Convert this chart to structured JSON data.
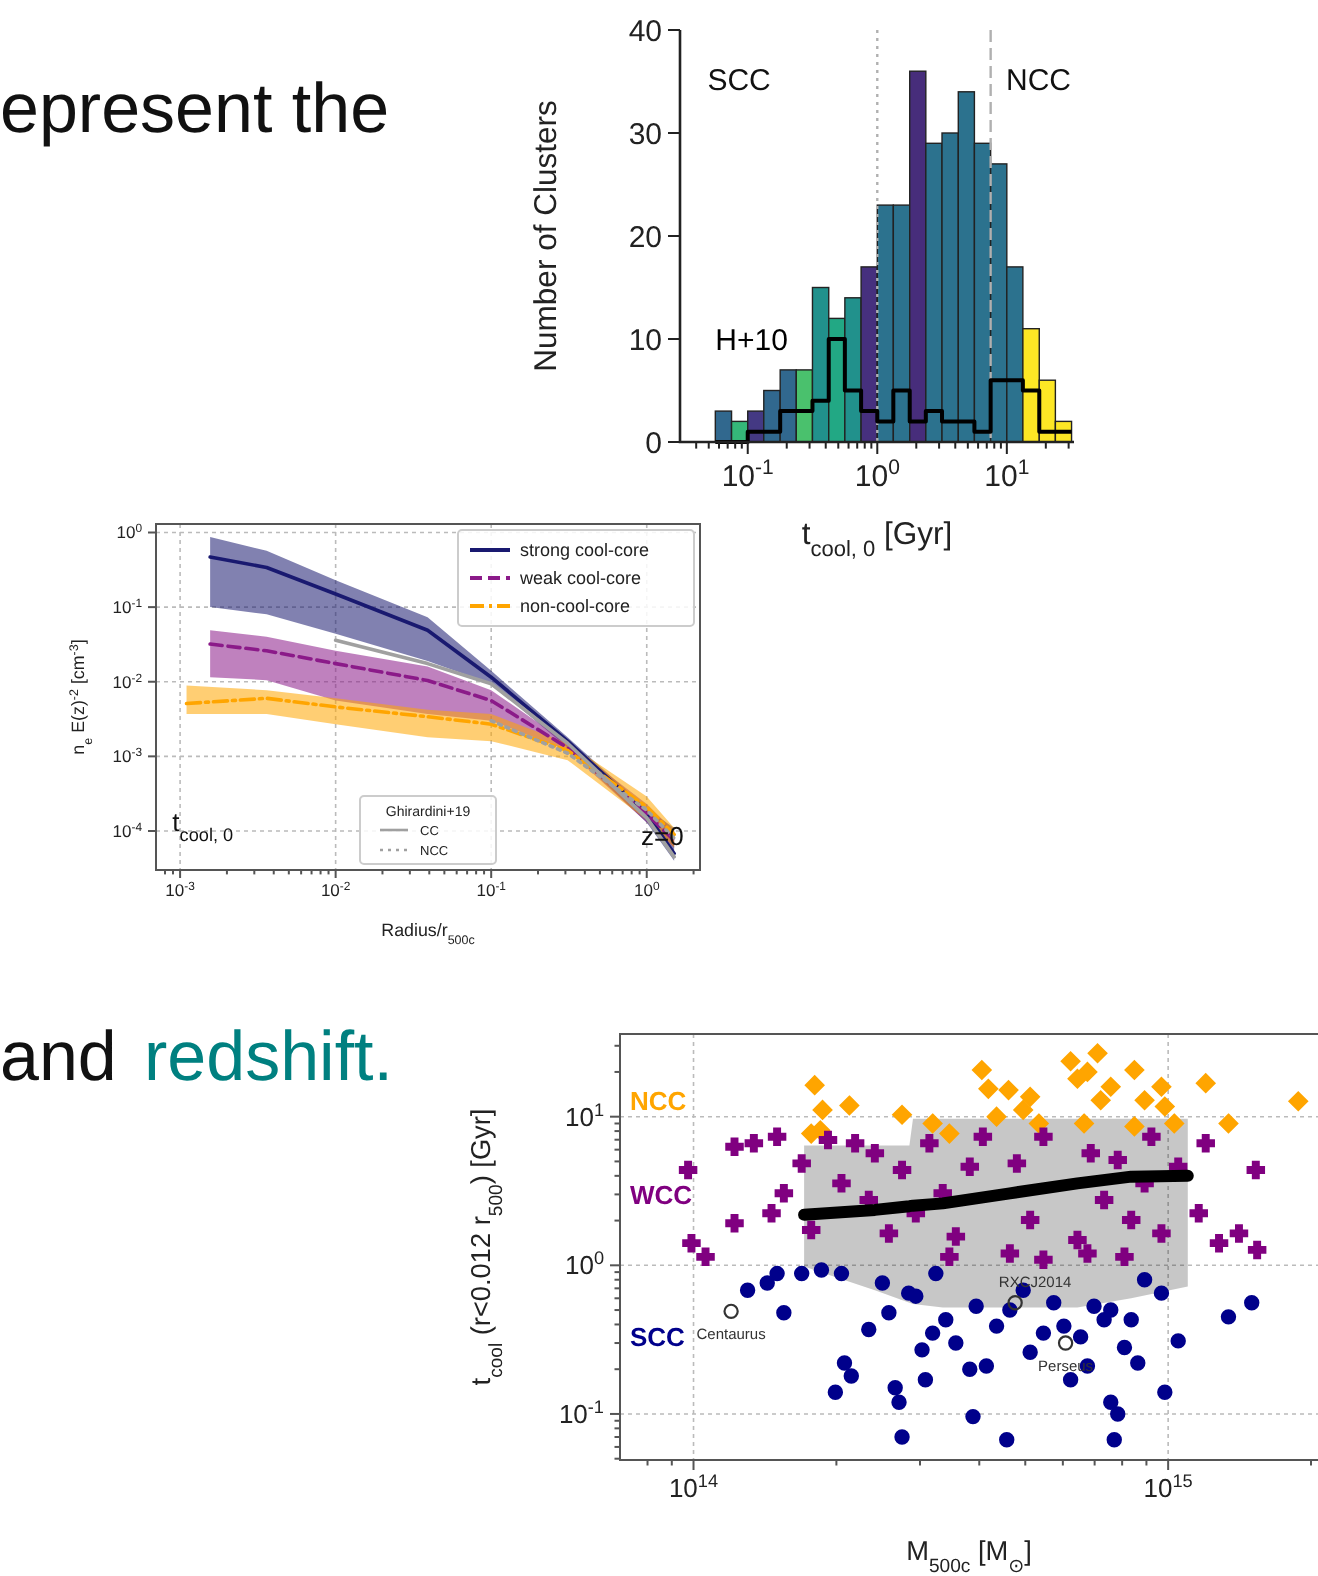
{
  "chart_data": [
    {
      "type": "histogram",
      "xlabel": "t$_{cool, 0}$ [Gyr]",
      "ylabel": "Number of Clusters",
      "log": "x",
      "grid": false,
      "legend": false,
      "bins": [
        0.0562,
        0.075,
        0.1,
        0.133,
        0.178,
        0.237,
        0.316,
        0.422,
        0.562,
        0.75,
        1,
        1.33,
        1.78,
        2.37,
        3.16,
        4.22,
        5.62,
        7.5,
        10,
        13.3,
        17.8,
        23.7,
        31.6
      ],
      "xlim": [
        0.03,
        33
      ],
      "ylim": [
        0,
        40
      ],
      "xticks": [
        {
          "value": 0.04,
          "label": null
        },
        {
          "value": 0.05,
          "label": null
        },
        {
          "value": 0.06,
          "label": null
        },
        {
          "value": 0.07,
          "label": null
        },
        {
          "value": 0.08,
          "label": null
        },
        {
          "value": 0.09,
          "label": null
        },
        {
          "value": 0.1,
          "label": "10$^{-1}$"
        },
        {
          "value": 0.2,
          "label": null
        },
        {
          "value": 0.3,
          "label": null
        },
        {
          "value": 0.4,
          "label": null
        },
        {
          "value": 0.5,
          "label": null
        },
        {
          "value": 0.6,
          "label": null
        },
        {
          "value": 0.7,
          "label": null
        },
        {
          "value": 0.8,
          "label": null
        },
        {
          "value": 0.9,
          "label": null
        },
        {
          "value": 1,
          "label": "10$^{0}$"
        },
        {
          "value": 2,
          "label": null
        },
        {
          "value": 3,
          "label": null
        },
        {
          "value": 4,
          "label": null
        },
        {
          "value": 5,
          "label": null
        },
        {
          "value": 6,
          "label": null
        },
        {
          "value": 7,
          "label": null
        },
        {
          "value": 8,
          "label": null
        },
        {
          "value": 9,
          "label": null
        },
        {
          "value": 10,
          "label": "10$^{1}$"
        },
        {
          "value": 20,
          "label": null
        },
        {
          "value": 30,
          "label": null
        }
      ],
      "yticks": [
        0,
        10,
        20,
        30,
        40
      ],
      "ref_lines": [
        {
          "axis": "x",
          "value": 1,
          "color": "#b0b0b0",
          "line_style": "dotted"
        },
        {
          "axis": "x",
          "value": 7.5,
          "color": "#b0b0b0",
          "line_style": "dashed"
        }
      ],
      "annotations": [
        "SCC",
        "NCC"
      ],
      "series": [
        {
          "values": [
            3,
            2,
            3,
            5,
            7,
            7,
            15,
            12,
            14,
            17,
            23,
            23,
            36,
            29,
            30,
            34,
            29,
            27,
            17,
            11,
            6,
            2
          ],
          "colors": [
            "#31688e",
            "#35b779",
            "#443983",
            "#31688e",
            "#31688e",
            "#4ac16d",
            "#21918c",
            "#22a884",
            "#21918c",
            "#46307e",
            "#2c728e",
            "#2c728e",
            "#472d7b",
            "#2c728e",
            "#2c728e",
            "#2c728e",
            "#2c728e",
            "#2c728e",
            "#2c728e",
            "#fde725",
            "#fde725",
            "#fde725"
          ]
        },
        {
          "name": "H+10",
          "type": "step",
          "color": "#000000",
          "x": [
            0.0562,
            0.075,
            0.1,
            0.133,
            0.178,
            0.237,
            0.316,
            0.422,
            0.562,
            0.75,
            1,
            1.33,
            1.78,
            2.37,
            3.16,
            4.22,
            5.62,
            7.5,
            10,
            13.3,
            17.8,
            23.7,
            31.6
          ],
          "values": [
            0,
            0,
            1,
            1,
            3,
            3,
            4,
            10,
            5,
            3,
            2,
            5,
            2,
            3,
            2,
            2,
            1,
            6,
            6,
            5,
            1,
            1,
            1
          ]
        }
      ]
    },
    {
      "type": "line",
      "xlabel": "Radius/r$_{500c}$",
      "ylabel": "n$_{e}$ E(z)$^{-2}$ [cm$^{-3}$]",
      "log": "xy",
      "grid": true,
      "legend": "right",
      "legend_title": "Ghirardini+19",
      "xlim": [
        0.0007,
        2.2
      ],
      "ylim": [
        3e-05,
        1.3
      ],
      "xticks": [
        {
          "value": 0.0008,
          "label": null
        },
        {
          "value": 0.0009,
          "label": null
        },
        {
          "value": 0.001,
          "label": "10$^{-3}$"
        },
        {
          "value": 0.002,
          "label": null
        },
        {
          "value": 0.003,
          "label": null
        },
        {
          "value": 0.004,
          "label": null
        },
        {
          "value": 0.005,
          "label": null
        },
        {
          "value": 0.006,
          "label": null
        },
        {
          "value": 0.007,
          "label": null
        },
        {
          "value": 0.008,
          "label": null
        },
        {
          "value": 0.009,
          "label": null
        },
        {
          "value": 0.01,
          "label": "10$^{-2}$"
        },
        {
          "value": 0.02,
          "label": null
        },
        {
          "value": 0.03,
          "label": null
        },
        {
          "value": 0.04,
          "label": null
        },
        {
          "value": 0.05,
          "label": null
        },
        {
          "value": 0.06,
          "label": null
        },
        {
          "value": 0.07,
          "label": null
        },
        {
          "value": 0.08,
          "label": null
        },
        {
          "value": 0.09,
          "label": null
        },
        {
          "value": 0.1,
          "label": "10$^{-1}$"
        },
        {
          "value": 0.2,
          "label": null
        },
        {
          "value": 0.3,
          "label": null
        },
        {
          "value": 0.4,
          "label": null
        },
        {
          "value": 0.5,
          "label": null
        },
        {
          "value": 0.6,
          "label": null
        },
        {
          "value": 0.7,
          "label": null
        },
        {
          "value": 0.8,
          "label": null
        },
        {
          "value": 0.9,
          "label": null
        },
        {
          "value": 1,
          "label": "10$^{0}$"
        },
        {
          "value": 2,
          "label": null
        }
      ],
      "yticks": [
        {
          "value": 0.0001,
          "label": "10$^{-4}$"
        },
        {
          "value": 0.001,
          "label": "10$^{-3}$"
        },
        {
          "value": 0.01,
          "label": "10$^{-2}$"
        },
        {
          "value": 0.1,
          "label": "10$^{-1}$"
        },
        {
          "value": 1,
          "label": "10$^{0}$"
        }
      ],
      "annotations": [
        "t$_{cool, 0}$",
        "z=0"
      ],
      "series": [
        {
          "name": "strong cool-core",
          "color": "#191970",
          "line_style": "solid",
          "x": [
            0.00156,
            0.0036,
            0.01,
            0.039,
            0.1,
            0.31,
            1,
            1.5
          ],
          "values": [
            0.47,
            0.34,
            0.15,
            0.049,
            0.0115,
            0.0016,
            0.00017,
            5e-05
          ],
          "lower": [
            0.1,
            0.08,
            0.044,
            0.019,
            0.0094,
            0.0013,
            0.00013,
            4e-05
          ],
          "upper": [
            0.87,
            0.57,
            0.23,
            0.073,
            0.014,
            0.0018,
            0.0002,
            0.00011
          ]
        },
        {
          "name": "weak cool-core",
          "color": "#8b1a89",
          "line_style": "dashed",
          "x": [
            0.00156,
            0.0036,
            0.01,
            0.039,
            0.1,
            0.31,
            1,
            1.5
          ],
          "values": [
            0.032,
            0.026,
            0.0175,
            0.0104,
            0.0056,
            0.0013,
            0.00017,
            7.5e-05
          ],
          "lower": [
            0.0115,
            0.0105,
            0.0056,
            0.0037,
            0.003,
            0.0012,
            0.00013,
            6e-05
          ],
          "upper": [
            0.049,
            0.04,
            0.026,
            0.016,
            0.0077,
            0.0015,
            0.00023,
            0.0001
          ]
        },
        {
          "name": "non-cool-core",
          "color": "#ffa500",
          "line_style": "dashdot",
          "x": [
            0.0011,
            0.0036,
            0.01,
            0.039,
            0.1,
            0.31,
            1,
            1.5
          ],
          "values": [
            0.0051,
            0.006,
            0.0046,
            0.0034,
            0.0027,
            0.0012,
            0.00021,
            9e-05
          ],
          "lower": [
            0.0037,
            0.0037,
            0.0027,
            0.0018,
            0.0016,
            0.00089,
            0.00014,
            6e-05
          ],
          "upper": [
            0.0089,
            0.0077,
            0.006,
            0.0042,
            0.0037,
            0.0015,
            0.00029,
            0.00011
          ]
        },
        {
          "name": "CC",
          "color": "#a0a0a0",
          "line_style": "solid",
          "x": [
            0.01,
            0.039,
            0.1,
            0.31,
            1,
            1.5
          ],
          "values": [
            0.036,
            0.0175,
            0.0094,
            0.0015,
            0.00015,
            4.5e-05
          ]
        },
        {
          "name": "NCC",
          "color": "#a0a0a0",
          "line_style": "dotted",
          "x": [
            0.1,
            0.31,
            1,
            1.5
          ],
          "values": [
            0.003,
            0.0011,
            0.00019,
            8e-05
          ]
        }
      ]
    },
    {
      "type": "scatter",
      "xlabel": "M$_{500c}$ [M$_{⊙}$]",
      "ylabel": "t$_{cool}$ (r<0.012 r$_{500}$) [Gyr]",
      "log": "xy",
      "grid": true,
      "legend": false,
      "xlim": [
        70000000000000.0,
        2130000000000000.0
      ],
      "ylim": [
        0.049,
        36
      ],
      "xticks": [
        {
          "value": 80000000000000.0,
          "label": null
        },
        {
          "value": 90000000000000.0,
          "label": null
        },
        {
          "value": 100000000000000.0,
          "label": "10$^{14}$"
        },
        {
          "value": 200000000000000.0,
          "label": null
        },
        {
          "value": 300000000000000.0,
          "label": null
        },
        {
          "value": 400000000000000.0,
          "label": null
        },
        {
          "value": 500000000000000.0,
          "label": null
        },
        {
          "value": 600000000000000.0,
          "label": null
        },
        {
          "value": 700000000000000.0,
          "label": null
        },
        {
          "value": 800000000000000.0,
          "label": null
        },
        {
          "value": 900000000000000.0,
          "label": null
        },
        {
          "value": 1000000000000000.0,
          "label": "10$^{15}$"
        },
        {
          "value": 2000000000000000.0,
          "label": null
        }
      ],
      "yticks": [
        {
          "value": 0.05,
          "label": null
        },
        {
          "value": 0.06,
          "label": null
        },
        {
          "value": 0.07,
          "label": null
        },
        {
          "value": 0.08,
          "label": null
        },
        {
          "value": 0.09,
          "label": null
        },
        {
          "value": 0.1,
          "label": "10$^{-1}$"
        },
        {
          "value": 0.2,
          "label": null
        },
        {
          "value": 0.3,
          "label": null
        },
        {
          "value": 0.4,
          "label": null
        },
        {
          "value": 0.5,
          "label": null
        },
        {
          "value": 0.6,
          "label": null
        },
        {
          "value": 0.7,
          "label": null
        },
        {
          "value": 0.8,
          "label": null
        },
        {
          "value": 0.9,
          "label": null
        },
        {
          "value": 1,
          "label": "10$^{0}$"
        },
        {
          "value": 2,
          "label": null
        },
        {
          "value": 3,
          "label": null
        },
        {
          "value": 4,
          "label": null
        },
        {
          "value": 5,
          "label": null
        },
        {
          "value": 6,
          "label": null
        },
        {
          "value": 7,
          "label": null
        },
        {
          "value": 8,
          "label": null
        },
        {
          "value": 9,
          "label": null
        },
        {
          "value": 10,
          "label": "10$^{1}$"
        },
        {
          "value": 20,
          "label": null
        },
        {
          "value": 30,
          "label": null
        }
      ],
      "annotations": [
        {
          "text": "Centaurus",
          "x": 120000000000000.0,
          "y": 0.49
        },
        {
          "text": "RXCJ2014",
          "x": 476000000000000.0,
          "y": 0.56
        },
        {
          "text": "Perseus",
          "x": 608000000000000.0,
          "y": 0.3
        }
      ],
      "series": [
        {
          "type": "line",
          "color": "#000000",
          "x": [
            171000000000000.0,
            241000000000000.0,
            285000000000000.0,
            290000000000000.0,
            335000000000000.0,
            464000000000000.0,
            644000000000000.0,
            836000000000000.0,
            1100000000000000.0
          ],
          "values": [
            2.19,
            2.36,
            2.5,
            2.52,
            2.61,
            3.05,
            3.56,
            3.95,
            4.0
          ],
          "lower": [
            0.98,
            0.68,
            0.56,
            0.55,
            0.52,
            0.52,
            0.52,
            0.6,
            0.72
          ],
          "upper": [
            6.4,
            6.4,
            6.4,
            9.7,
            9.7,
            9.7,
            9.7,
            9.7,
            9.7
          ]
        },
        {
          "name": "NCC",
          "color": "#ffa500",
          "marker": "diamond",
          "x": [
            180000000000000.0,
            187000000000000.0,
            185000000000000.0,
            213000000000000.0,
            177000000000000.0,
            275000000000000.0,
            319000000000000.0,
            346000000000000.0,
            405000000000000.0,
            418000000000000.0,
            461000000000000.0,
            495000000000000.0,
            512000000000000.0,
            534000000000000.0,
            623000000000000.0,
            644000000000000.0,
            676000000000000.0,
            710000000000000.0,
            721000000000000.0,
            665000000000000.0,
            757000000000000.0,
            849000000000000.0,
            892000000000000.0,
            968000000000000.0,
            984000000000000.0,
            1030000000000000.0,
            1200000000000000.0,
            1340000000000000.0,
            1880000000000000.0,
            849000000000000.0,
            435000000000000.0
          ],
          "values": [
            16.3,
            11.1,
            8.1,
            11.9,
            7.7,
            10.3,
            9.0,
            7.7,
            20.6,
            15.4,
            15.1,
            11.1,
            13.6,
            9.0,
            23.6,
            18.0,
            20.0,
            26.7,
            12.9,
            9.0,
            15.9,
            20.6,
            12.9,
            15.9,
            11.7,
            9.0,
            16.8,
            9.0,
            12.7,
            8.6,
            10.0
          ]
        },
        {
          "name": "WCC",
          "color": "#800080",
          "marker": "cross",
          "x": [
            97400000000000.0,
            99000000000000.0,
            106000000000000.0,
            122000000000000.0,
            122000000000000.0,
            134000000000000.0,
            146000000000000.0,
            150000000000000.0,
            155000000000000.0,
            169000000000000.0,
            177000000000000.0,
            192000000000000.0,
            205000000000000.0,
            219000000000000.0,
            234000000000000.0,
            241000000000000.0,
            258000000000000.0,
            275000000000000.0,
            294000000000000.0,
            314000000000000.0,
            335000000000000.0,
            357000000000000.0,
            382000000000000.0,
            407000000000000.0,
            464000000000000.0,
            480000000000000.0,
            512000000000000.0,
            546000000000000.0,
            644000000000000.0,
            687000000000000.0,
            733000000000000.0,
            783000000000000.0,
            836000000000000.0,
            892000000000000.0,
            922000000000000.0,
            968000000000000.0,
            1050000000000000.0,
            1160000000000000.0,
            1200000000000000.0,
            1280000000000000.0,
            1530000000000000.0,
            1540000000000000.0,
            1410000000000000.0,
            676000000000000.0,
            809000000000000.0,
            346000000000000.0,
            546000000000000.0
          ],
          "values": [
            4.38,
            1.41,
            1.14,
            6.28,
            1.92,
            6.62,
            2.24,
            7.33,
            3.05,
            4.85,
            1.73,
            6.97,
            3.56,
            6.62,
            2.75,
            5.67,
            1.64,
            4.38,
            2.24,
            6.62,
            3.05,
            1.56,
            4.61,
            7.33,
            1.2,
            4.85,
            2.02,
            7.33,
            1.48,
            5.67,
            2.75,
            5.11,
            2.02,
            3.56,
            7.33,
            1.64,
            4.61,
            2.24,
            6.62,
            1.41,
            4.38,
            1.27,
            1.64,
            1.2,
            1.14,
            1.14,
            1.09
          ]
        },
        {
          "name": "SCC",
          "color": "#00008b",
          "marker": "circle",
          "x": [
            130000000000000.0,
            143000000000000.0,
            150000000000000.0,
            155000000000000.0,
            169000000000000.0,
            186000000000000.0,
            205000000000000.0,
            208000000000000.0,
            215000000000000.0,
            199000000000000.0,
            234000000000000.0,
            250000000000000.0,
            258000000000000.0,
            266000000000000.0,
            271000000000000.0,
            275000000000000.0,
            284000000000000.0,
            294000000000000.0,
            303000000000000.0,
            308000000000000.0,
            319000000000000.0,
            324000000000000.0,
            340000000000000.0,
            357000000000000.0,
            382000000000000.0,
            388000000000000.0,
            394000000000000.0,
            414000000000000.0,
            435000000000000.0,
            457000000000000.0,
            464000000000000.0,
            495000000000000.0,
            512000000000000.0,
            546000000000000.0,
            574000000000000.0,
            603000000000000.0,
            623000000000000.0,
            654000000000000.0,
            698000000000000.0,
            733000000000000.0,
            757000000000000.0,
            783000000000000.0,
            809000000000000.0,
            836000000000000.0,
            863000000000000.0,
            892000000000000.0,
            968000000000000.0,
            984000000000000.0,
            1050000000000000.0,
            1340000000000000.0,
            1500000000000000.0,
            770000000000000.0,
            757000000000000.0,
            676000000000000.0
          ],
          "values": [
            0.68,
            0.76,
            0.88,
            0.48,
            0.88,
            0.93,
            0.88,
            0.22,
            0.18,
            0.14,
            0.37,
            0.76,
            0.48,
            0.15,
            0.12,
            0.07,
            0.65,
            0.62,
            0.27,
            0.17,
            0.35,
            0.88,
            0.43,
            0.3,
            0.2,
            0.096,
            0.53,
            0.21,
            0.39,
            0.067,
            0.5,
            0.68,
            0.26,
            0.35,
            0.56,
            0.39,
            0.17,
            0.33,
            0.53,
            0.43,
            0.12,
            0.1,
            0.28,
            0.43,
            0.22,
            0.8,
            0.65,
            0.14,
            0.31,
            0.45,
            0.56,
            0.067,
            0.5,
            0.21
          ]
        },
        {
          "color": "#333333",
          "marker": "circle",
          "x": [
            120000000000000.0,
            476000000000000.0,
            608000000000000.0
          ],
          "values": [
            0.49,
            0.56,
            0.3
          ]
        }
      ]
    },
    {
      "type": "other",
      "annotations": [
        "epresent the",
        "and",
        "redshift."
      ]
    }
  ]
}
